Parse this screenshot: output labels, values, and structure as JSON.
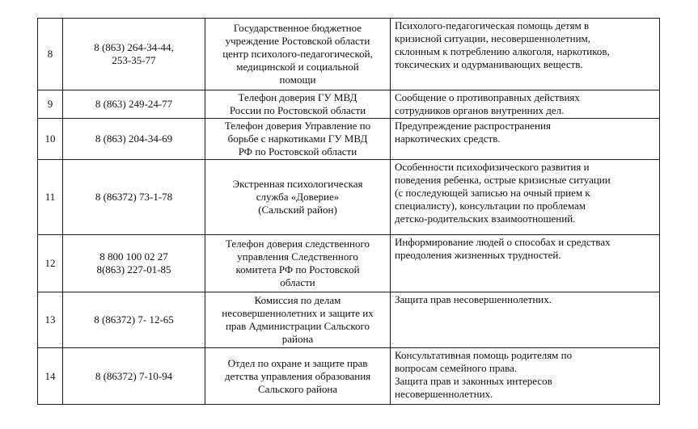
{
  "page": {
    "background_color": "#ffffff",
    "text_color": "#111111",
    "table_border_color": "#1a1a1a"
  },
  "table": {
    "rows": [
      {
        "num": "8",
        "phone": "8 (863) 264-34-44,\n253-35-77",
        "org": "Государственное бюджетное\nучреждение Ростовской области\nцентр психолого-педагогической,\nмедицинской и социальной\nпомощи",
        "desc": "Психолого-педагогическая помощь детям в\nкризисной ситуации, несовершеннолетним,\nсклонным к потреблению алкоголя, наркотиков,\nтоксических и одурманивающих веществ."
      },
      {
        "num": "9",
        "phone": "8 (863) 249-24-77",
        "org": "Телефон доверия ГУ МВД\nРоссии по Ростовской области",
        "desc": "Сообщение о противоправных действиях\nсотрудников органов внутренних дел."
      },
      {
        "num": "10",
        "phone": "8 (863) 204-34-69",
        "org": "Телефон доверия Управление по\nборьбе с наркотиками ГУ МВД\nРФ по Ростовской области",
        "desc": "Предупреждение распространения\nнаркотических средств."
      },
      {
        "num": "11",
        "phone": "8 (86372) 73-1-78",
        "org": "Экстренная психологическая\nслужба «Доверие»\n(Сальский район)",
        "desc": "Особенности психофизического развития и\nповедения ребенка, острые кризисные ситуации\n(с последующей записью на очный прием к\nспециалисту), консультации по проблемам\nдетско-родительских взаимоотношений."
      },
      {
        "num": "12",
        "phone": "8 800 100 02 27\n8(863) 227-01-85",
        "org": "Телефон доверия следственного\nуправления  Следственного\nкомитета РФ по Ростовской\nобласти",
        "desc": "Информирование людей о способах и средствах\nпреодоления жизненных трудностей."
      },
      {
        "num": "13",
        "phone": "8 (86372) 7- 12-65",
        "org": "Комиссия по делам\nнесовершеннолетних и защите их\nправ Администрации Сальского\nрайона",
        "desc": "Защита прав несовершеннолетних."
      },
      {
        "num": "14",
        "phone": "8 (86372) 7-10-94",
        "org": "Отдел по охране и защите прав\nдетства управления образования\nСальского района",
        "desc": "Консультативная помощь  родителям по\nвопросам семейного права.\nЗащита прав и законных интересов\nнесовершеннолетних."
      }
    ]
  }
}
